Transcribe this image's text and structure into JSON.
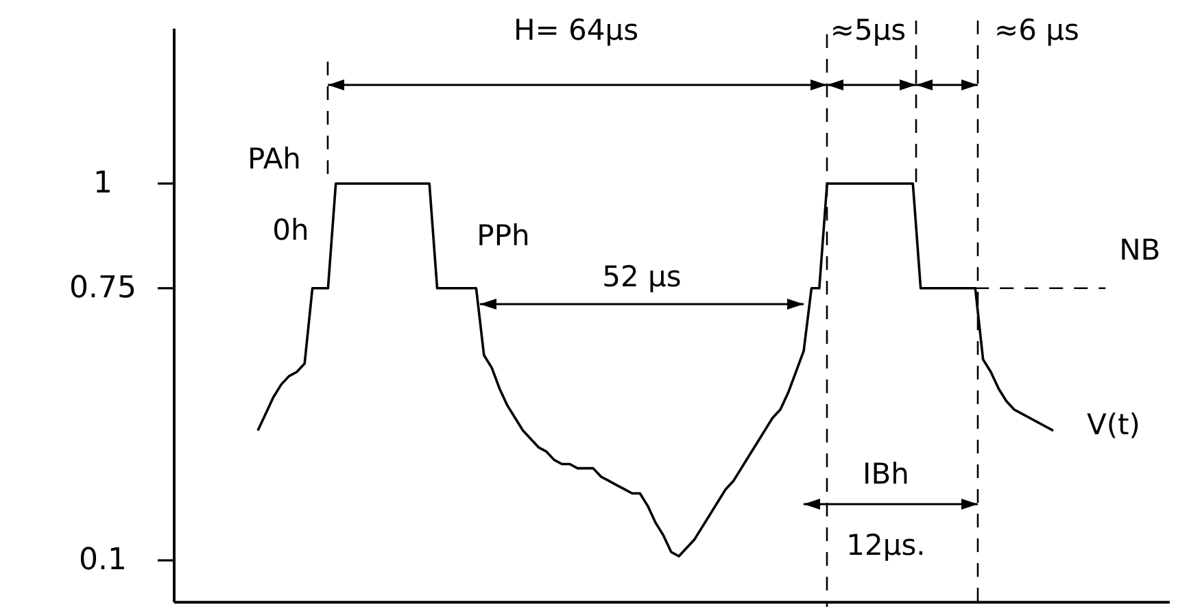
{
  "chart_data": {
    "type": "line",
    "ylim": [
      0,
      1.37
    ],
    "yticks": [
      0.1,
      0.75,
      1
    ],
    "tick_labels": "y",
    "line_style": "solid",
    "categories": [
      null,
      null,
      null,
      null,
      null,
      null,
      null,
      null,
      null,
      null,
      null,
      null,
      null,
      null,
      null,
      null,
      null,
      null,
      null,
      null,
      null,
      null,
      null,
      null,
      null,
      null,
      null,
      null,
      null,
      null,
      null,
      null,
      null,
      null,
      null,
      null,
      null,
      null,
      null,
      null,
      null,
      null,
      null,
      null,
      null,
      null,
      null,
      null,
      null,
      null,
      null,
      null,
      null,
      null,
      null,
      null,
      null,
      null,
      null,
      null,
      null,
      null,
      null,
      null,
      null,
      null,
      null,
      null,
      null,
      null,
      null,
      null,
      null,
      null,
      null,
      null,
      null,
      null,
      null,
      null,
      null,
      null,
      null,
      null,
      null,
      null,
      null,
      null,
      null,
      null,
      null,
      null,
      null,
      null,
      null,
      null,
      null,
      null,
      null,
      null,
      null,
      null,
      null
    ],
    "series": [
      {
        "color": "#000000",
        "values": [
          0.41,
          0.45,
          0.49,
          0.52,
          0.54,
          0.55,
          0.57,
          0.75,
          0.75,
          0.75,
          1,
          1,
          1,
          1,
          1,
          1,
          1,
          1,
          1,
          1,
          1,
          1,
          1,
          0.75,
          0.75,
          0.75,
          0.75,
          0.75,
          0.75,
          0.59,
          0.56,
          0.51,
          0.47,
          0.44,
          0.41,
          0.39,
          0.37,
          0.36,
          0.34,
          0.33,
          0.33,
          0.32,
          0.32,
          0.32,
          0.3,
          0.29,
          0.28,
          0.27,
          0.26,
          0.26,
          0.23,
          0.19,
          0.16,
          0.12,
          0.11,
          0.13,
          0.15,
          0.18,
          0.21,
          0.24,
          0.27,
          0.29,
          0.32,
          0.35,
          0.38,
          0.41,
          0.44,
          0.46,
          0.5,
          0.55,
          0.6,
          0.75,
          0.75,
          1,
          1,
          1,
          1,
          1,
          1,
          1,
          1,
          1,
          1,
          1,
          1,
          0.75,
          0.75,
          0.75,
          0.75,
          0.75,
          0.75,
          0.75,
          0.75,
          0.58,
          0.55,
          0.51,
          0.48,
          0.46,
          0.45,
          0.44,
          0.43,
          0.42,
          0.41
        ]
      }
    ],
    "ref_lines": [
      {
        "axis": "y",
        "value": 0.75,
        "label": "NB",
        "line_style": "dashed"
      }
    ],
    "annotations": [
      "H= 64µs",
      "≈5µs",
      "≈6 µs",
      "52 µs",
      "IBh",
      "12µs.",
      "PAh",
      "0h",
      "PPh",
      "V(t)"
    ]
  }
}
